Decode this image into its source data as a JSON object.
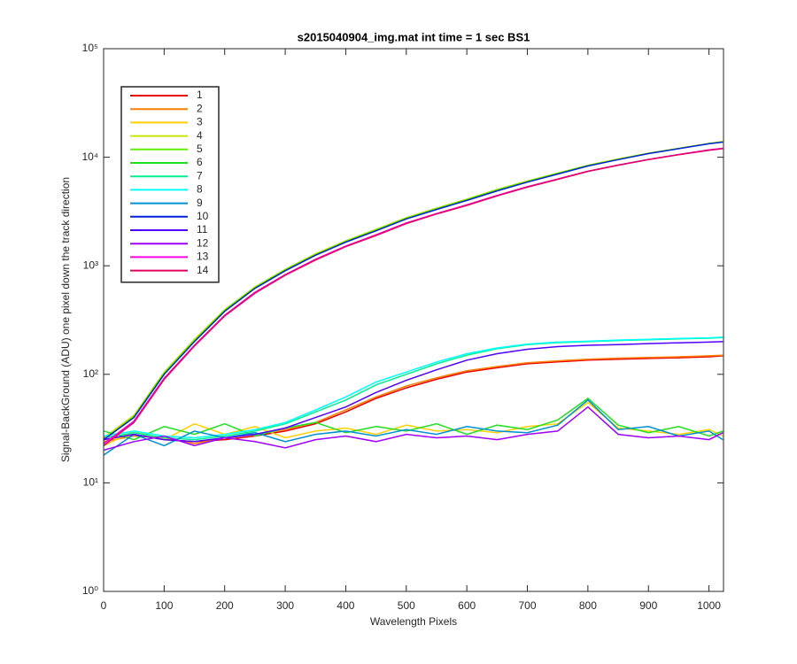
{
  "chart_data": {
    "type": "line",
    "title": "s2015040904_img.mat int time = 1 sec   BS1",
    "xlabel": "Wavelength Pixels",
    "ylabel": "Signal-BackGround (ADU) one pixel down the track direction",
    "x": [
      0,
      50,
      100,
      150,
      200,
      250,
      300,
      350,
      400,
      450,
      500,
      550,
      600,
      650,
      700,
      750,
      800,
      850,
      900,
      950,
      1000,
      1023
    ],
    "xlim": [
      0,
      1024
    ],
    "xticks": [
      0,
      100,
      200,
      300,
      400,
      500,
      600,
      700,
      800,
      900,
      1000
    ],
    "ylim": [
      1,
      100000
    ],
    "log_y": true,
    "yticks": [
      {
        "value": 1,
        "label": "10⁰"
      },
      {
        "value": 10,
        "label": "10¹"
      },
      {
        "value": 100,
        "label": "10²"
      },
      {
        "value": 1000,
        "label": "10³"
      },
      {
        "value": 10000,
        "label": "10⁴"
      },
      {
        "value": 100000,
        "label": "10⁵"
      }
    ],
    "legend": "upper left",
    "series": [
      {
        "name": "1",
        "color": "#e60000",
        "values": [
          25,
          28,
          25,
          24,
          25,
          27,
          30,
          35,
          45,
          60,
          75,
          90,
          105,
          115,
          125,
          130,
          135,
          138,
          140,
          142,
          145,
          148
        ]
      },
      {
        "name": "2",
        "color": "#ff8000",
        "values": [
          24,
          27,
          26,
          23,
          26,
          28,
          31,
          36,
          47,
          62,
          78,
          93,
          108,
          118,
          128,
          133,
          138,
          141,
          143,
          145,
          148,
          150
        ]
      },
      {
        "name": "3",
        "color": "#ffd000",
        "values": [
          22,
          30,
          25,
          35,
          28,
          33,
          26,
          30,
          32,
          28,
          34,
          30,
          31,
          29,
          33,
          35,
          55,
          32,
          30,
          28,
          31,
          27
        ]
      },
      {
        "name": "4",
        "color": "#c8e600",
        "values": [
          26,
          42,
          105,
          210,
          395,
          640,
          930,
          1290,
          1700,
          2170,
          2780,
          3400,
          4120,
          5050,
          6050,
          7150,
          8450,
          9650,
          10900,
          12100,
          13400,
          14000
        ]
      },
      {
        "name": "5",
        "color": "#60f000",
        "values": [
          25,
          41,
          103,
          205,
          390,
          630,
          920,
          1270,
          1680,
          2140,
          2750,
          3360,
          4080,
          5000,
          6000,
          7100,
          8400,
          9600,
          10850,
          12050,
          13350,
          13900
        ]
      },
      {
        "name": "6",
        "color": "#20e020",
        "values": [
          30,
          25,
          33,
          28,
          35,
          27,
          32,
          36,
          29,
          33,
          30,
          35,
          28,
          34,
          31,
          38,
          60,
          34,
          29,
          33,
          27,
          30
        ]
      },
      {
        "name": "7",
        "color": "#00f090",
        "values": [
          26,
          29,
          26,
          25,
          27,
          30,
          35,
          45,
          58,
          80,
          100,
          125,
          150,
          172,
          188,
          196,
          200,
          205,
          208,
          212,
          215,
          218
        ]
      },
      {
        "name": "8",
        "color": "#00ffff",
        "values": [
          27,
          30,
          27,
          26,
          28,
          31,
          36,
          47,
          62,
          85,
          105,
          130,
          155,
          175,
          190,
          198,
          202,
          207,
          210,
          214,
          217,
          220
        ]
      },
      {
        "name": "9",
        "color": "#0090d0",
        "values": [
          18,
          28,
          22,
          30,
          26,
          29,
          24,
          28,
          30,
          27,
          31,
          28,
          33,
          30,
          29,
          34,
          58,
          31,
          33,
          27,
          30,
          25
        ]
      },
      {
        "name": "10",
        "color": "#0020e0",
        "values": [
          25,
          40,
          100,
          200,
          380,
          620,
          900,
          1250,
          1650,
          2100,
          2700,
          3300,
          4000,
          4900,
          5900,
          7000,
          8300,
          9500,
          10800,
          12000,
          13300,
          13800
        ]
      },
      {
        "name": "11",
        "color": "#5000ff",
        "values": [
          25,
          28,
          25,
          24,
          26,
          28,
          32,
          40,
          50,
          68,
          88,
          110,
          135,
          155,
          170,
          180,
          185,
          188,
          192,
          195,
          198,
          200
        ]
      },
      {
        "name": "12",
        "color": "#a000ff",
        "values": [
          20,
          24,
          27,
          22,
          26,
          24,
          21,
          25,
          27,
          24,
          28,
          26,
          27,
          25,
          28,
          30,
          50,
          28,
          26,
          27,
          25,
          29
        ]
      },
      {
        "name": "13",
        "color": "#ff00e0",
        "values": [
          23,
          37,
          92,
          185,
          350,
          570,
          830,
          1150,
          1520,
          1930,
          2480,
          3030,
          3650,
          4450,
          5350,
          6300,
          7450,
          8500,
          9550,
          10600,
          11700,
          12100
        ]
      },
      {
        "name": "14",
        "color": "#e00060",
        "values": [
          22,
          36,
          90,
          182,
          345,
          560,
          820,
          1130,
          1500,
          1900,
          2450,
          3000,
          3600,
          4400,
          5300,
          6250,
          7400,
          8450,
          9500,
          10550,
          11600,
          12000
        ]
      }
    ]
  }
}
